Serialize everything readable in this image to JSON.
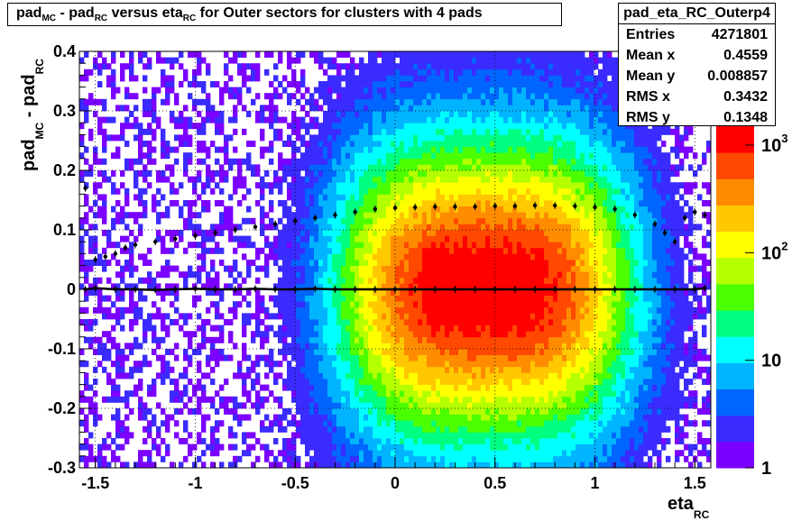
{
  "title": {
    "p1": "pad",
    "p1s": "MC",
    "p2": " - pad",
    "p2s": "RC",
    "p3": " versus eta",
    "p3s": "RC",
    "p4": " for Outer sectors for clusters with 4 pads"
  },
  "stats": {
    "name": "pad_eta_RC_Outerp4",
    "rows": [
      {
        "label": "Entries",
        "value": "4271801"
      },
      {
        "label": "Mean x",
        "value": "0.4559"
      },
      {
        "label": "Mean y",
        "value": "0.008857"
      },
      {
        "label": "RMS x",
        "value": "0.3432"
      },
      {
        "label": "RMS y",
        "value": "0.1348"
      }
    ]
  },
  "axes": {
    "xlabel": "eta",
    "xlabel_sub": "RC",
    "ylabel": "pad",
    "ylabel_sub1": "MC",
    "ylabel_mid": " - pad",
    "ylabel_sub2": "RC",
    "xticks": [
      "-1.5",
      "-1",
      "-0.5",
      "0",
      "0.5",
      "1",
      "1.5"
    ],
    "yticks": [
      "-0.3",
      "-0.2",
      "-0.1",
      "0",
      "0.1",
      "0.2",
      "0.3",
      "0.4"
    ]
  },
  "palette": {
    "stops": [
      "#7b00ff",
      "#3a2bff",
      "#0066ff",
      "#00b4ff",
      "#00ffff",
      "#00ff80",
      "#4cff00",
      "#b4ff00",
      "#ffff00",
      "#ffc800",
      "#ff8c00",
      "#ff4800",
      "#ff0000"
    ]
  },
  "colorbar": {
    "labels": [
      "1",
      "10",
      "10",
      "10"
    ],
    "exponents": [
      "",
      "",
      "2",
      "3"
    ]
  },
  "chart_data": {
    "type": "heatmap",
    "title": "pad_MC - pad_RC versus eta_RC for Outer sectors for clusters with 4 pads",
    "xlabel": "eta_RC",
    "ylabel": "pad_MC - pad_RC",
    "xlim": [
      -1.58,
      1.58
    ],
    "ylim": [
      -0.3,
      0.4
    ],
    "zscale": "log",
    "zlim": [
      1,
      1500
    ],
    "grid": true,
    "peak": {
      "x": 0.45,
      "y": 0.0
    },
    "series": [
      {
        "name": "RMS profile",
        "x": [
          -1.55,
          -1.5,
          -1.45,
          -1.4,
          -1.35,
          -1.3,
          -1.2,
          -1.1,
          -1.0,
          -0.9,
          -0.8,
          -0.7,
          -0.6,
          -0.5,
          -0.4,
          -0.3,
          -0.2,
          -0.1,
          0.0,
          0.1,
          0.2,
          0.3,
          0.4,
          0.5,
          0.6,
          0.7,
          0.8,
          0.9,
          1.0,
          1.1,
          1.2,
          1.3,
          1.35,
          1.4,
          1.45,
          1.5,
          1.55
        ],
        "values": [
          0.17,
          0.05,
          0.055,
          0.06,
          0.07,
          0.075,
          0.08,
          0.085,
          0.09,
          0.095,
          0.1,
          0.105,
          0.11,
          0.115,
          0.12,
          0.125,
          0.13,
          0.135,
          0.137,
          0.138,
          0.139,
          0.139,
          0.139,
          0.14,
          0.14,
          0.141,
          0.141,
          0.14,
          0.138,
          0.135,
          0.125,
          0.11,
          0.095,
          0.08,
          0.12,
          0.13,
          0.125
        ]
      },
      {
        "name": "Mean profile",
        "x": [
          -1.55,
          -1.5,
          -1.4,
          -1.3,
          -1.2,
          -1.1,
          -1.0,
          -0.9,
          -0.8,
          -0.7,
          -0.6,
          -0.5,
          -0.4,
          -0.3,
          -0.2,
          -0.1,
          0.0,
          0.1,
          0.2,
          0.3,
          0.4,
          0.5,
          0.6,
          0.7,
          0.8,
          0.9,
          1.0,
          1.1,
          1.2,
          1.3,
          1.4,
          1.5,
          1.55
        ],
        "values": [
          0.0,
          0.002,
          0.0,
          0.0,
          -0.001,
          0.0,
          0.001,
          0.0,
          0.0,
          0.001,
          0.0,
          0.0,
          0.001,
          0.0,
          0.0,
          0.0,
          0.0,
          0.0,
          0.0,
          0.0,
          0.0,
          0.0,
          0.0,
          0.0,
          0.0,
          0.0,
          0.0,
          0.0,
          0.0,
          0.0,
          0.0,
          0.0,
          0.002
        ]
      }
    ]
  }
}
